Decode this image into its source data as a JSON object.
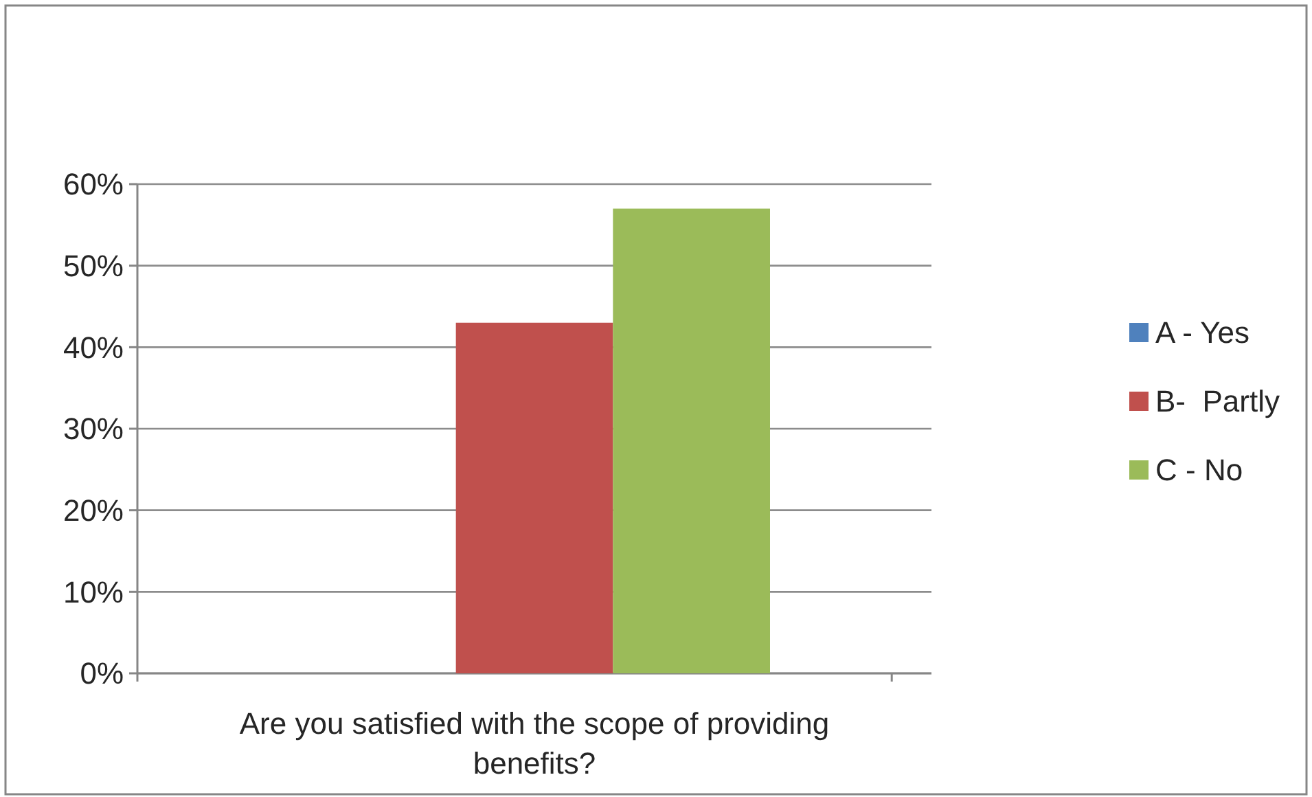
{
  "chart_data": {
    "type": "bar",
    "categories": [
      "Are you satisfied with the scope of providing benefits?"
    ],
    "series": [
      {
        "name": "A - Yes",
        "color": "#4f81bd",
        "values": [
          0
        ]
      },
      {
        "name": "B-  Partly",
        "color": "#c0504d",
        "values": [
          43
        ]
      },
      {
        "name": "C - No",
        "color": "#9bbb59",
        "values": [
          57
        ]
      }
    ],
    "ylim": [
      0,
      60
    ],
    "yticks": [
      {
        "value": 0,
        "label": "0%"
      },
      {
        "value": 10,
        "label": "10%"
      },
      {
        "value": 20,
        "label": "20%"
      },
      {
        "value": 30,
        "label": "30%"
      },
      {
        "value": 40,
        "label": "40%"
      },
      {
        "value": 50,
        "label": "50%"
      },
      {
        "value": 60,
        "label": "60%"
      }
    ],
    "grid": "y",
    "legend": "right"
  }
}
